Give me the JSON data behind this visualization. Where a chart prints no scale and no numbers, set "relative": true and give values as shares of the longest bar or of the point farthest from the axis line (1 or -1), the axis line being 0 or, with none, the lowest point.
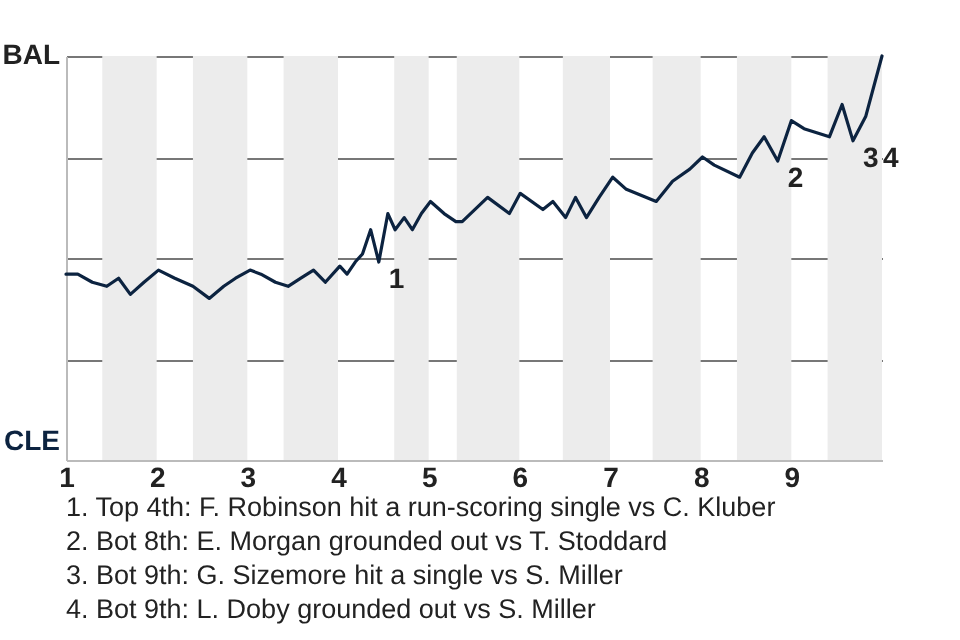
{
  "chart_data": {
    "type": "line",
    "x": [
      1.0,
      1.13,
      1.29,
      1.45,
      1.58,
      1.71,
      1.86,
      2.02,
      2.2,
      2.4,
      2.58,
      2.74,
      2.87,
      3.03,
      3.15,
      3.31,
      3.45,
      3.59,
      3.73,
      3.86,
      4.02,
      4.1,
      4.19,
      4.27,
      4.36,
      4.45,
      4.55,
      4.63,
      4.73,
      4.82,
      4.92,
      5.02,
      5.17,
      5.3,
      5.37,
      5.65,
      5.89,
      6.01,
      6.26,
      6.37,
      6.51,
      6.62,
      6.74,
      6.88,
      7.03,
      7.18,
      7.51,
      7.69,
      7.88,
      8.02,
      8.15,
      8.43,
      8.57,
      8.7,
      8.85,
      9.0,
      9.14,
      9.42,
      9.56,
      9.68,
      9.82,
      10.0
    ],
    "relative": true,
    "series": [
      {
        "color": "#0c2340",
        "values": [
          0.46,
          0.46,
          0.44,
          0.43,
          0.45,
          0.41,
          0.44,
          0.47,
          0.45,
          0.43,
          0.4,
          0.43,
          0.45,
          0.47,
          0.46,
          0.44,
          0.43,
          0.45,
          0.47,
          0.44,
          0.48,
          0.46,
          0.49,
          0.51,
          0.57,
          0.49,
          0.61,
          0.57,
          0.6,
          0.57,
          0.61,
          0.64,
          0.61,
          0.59,
          0.59,
          0.65,
          0.61,
          0.66,
          0.62,
          0.64,
          0.6,
          0.65,
          0.6,
          0.65,
          0.7,
          0.67,
          0.64,
          0.69,
          0.72,
          0.75,
          0.73,
          0.7,
          0.76,
          0.8,
          0.74,
          0.84,
          0.82,
          0.8,
          0.88,
          0.79,
          0.85,
          1.0
        ]
      }
    ],
    "xlim": [
      1,
      10
    ],
    "xticks": [
      1,
      2,
      3,
      4,
      5,
      6,
      7,
      8,
      9
    ],
    "grid": "y",
    "bands": [
      {
        "axis": "x",
        "from": 1.4,
        "to": 2,
        "color": "#ececec"
      },
      {
        "axis": "x",
        "from": 2.4,
        "to": 3,
        "color": "#ececec"
      },
      {
        "axis": "x",
        "from": 3.4,
        "to": 4,
        "color": "#ececec"
      },
      {
        "axis": "x",
        "from": 4.62,
        "to": 5,
        "color": "#ececec"
      },
      {
        "axis": "x",
        "from": 5.31,
        "to": 6,
        "color": "#ececec"
      },
      {
        "axis": "x",
        "from": 6.48,
        "to": 7,
        "color": "#ececec"
      },
      {
        "axis": "x",
        "from": 7.47,
        "to": 8,
        "color": "#ececec"
      },
      {
        "axis": "x",
        "from": 8.4,
        "to": 9,
        "color": "#ececec"
      },
      {
        "axis": "x",
        "from": 9.4,
        "to": 10,
        "color": "#ececec"
      }
    ],
    "annotations": [
      {
        "text": "1",
        "x": 4.45,
        "y": 0.49
      },
      {
        "text": "2",
        "x": 8.85,
        "y": 0.74
      },
      {
        "text": "3",
        "x": 9.68,
        "y": 0.79
      },
      {
        "text": "4",
        "x": 9.68,
        "y": 0.79
      },
      "BAL",
      "CLE",
      "1. Top 4th: F. Robinson hit a run-scoring single vs C. Kluber",
      "2. Bot 8th: E. Morgan grounded out vs T. Stoddard",
      "3. Bot 9th: G. Sizemore hit a single vs S. Miller",
      "4. Bot 9th: L. Doby grounded out vs S. Miller"
    ]
  }
}
